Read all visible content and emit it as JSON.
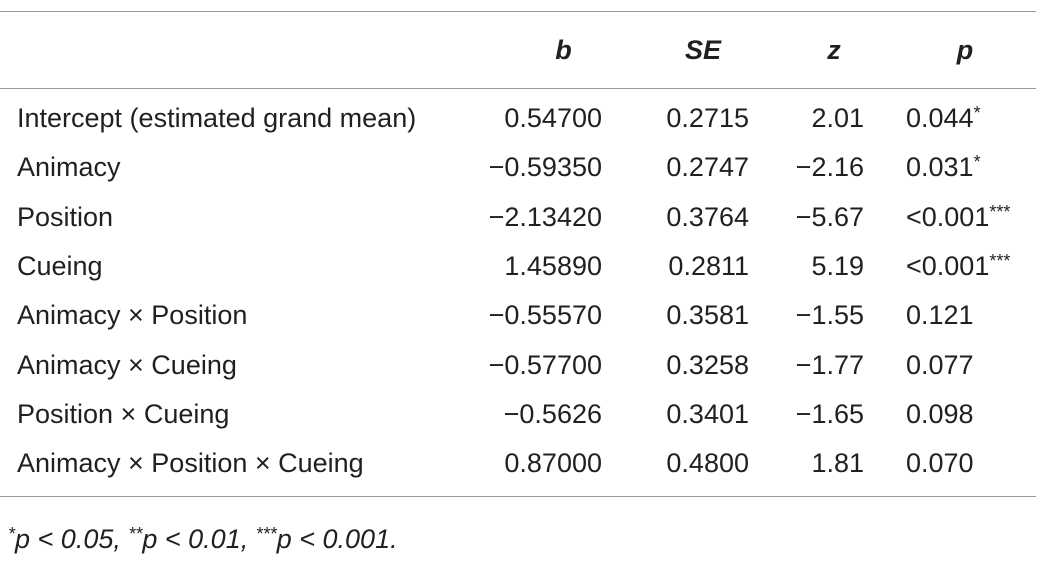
{
  "table": {
    "headers": {
      "label": "",
      "b": "b",
      "se": "SE",
      "z": "z",
      "p": "p"
    },
    "rows": [
      {
        "label": "Intercept (estimated grand mean)",
        "b": "0.54700",
        "se": "0.2715",
        "z": "2.01",
        "p": "0.044",
        "p_sig": "*"
      },
      {
        "label": "Animacy",
        "b": "−0.59350",
        "se": "0.2747",
        "z": "−2.16",
        "p": "0.031",
        "p_sig": "*"
      },
      {
        "label": "Position",
        "b": "−2.13420",
        "se": "0.3764",
        "z": "−5.67",
        "p": "<0.001",
        "p_sig": "***"
      },
      {
        "label": "Cueing",
        "b": "1.45890",
        "se": "0.2811",
        "z": "5.19",
        "p": "<0.001",
        "p_sig": "***"
      },
      {
        "label": "Animacy × Position",
        "b": "−0.55570",
        "se": "0.3581",
        "z": "−1.55",
        "p": "0.121",
        "p_sig": ""
      },
      {
        "label": "Animacy × Cueing",
        "b": "−0.57700",
        "se": "0.3258",
        "z": "−1.77",
        "p": "0.077",
        "p_sig": ""
      },
      {
        "label": "Position × Cueing",
        "b": "−0.5626",
        "se": "0.3401",
        "z": "−1.65",
        "p": "0.098",
        "p_sig": ""
      },
      {
        "label": "Animacy × Position × Cueing",
        "b": "0.87000",
        "se": "0.4800",
        "z": "1.81",
        "p": "0.070",
        "p_sig": ""
      }
    ]
  },
  "footnote": {
    "m1": "*",
    "t1": "p < 0.05, ",
    "m2": "**",
    "t2": "p < 0.01, ",
    "m3": "***",
    "t3": "p < 0.001."
  }
}
